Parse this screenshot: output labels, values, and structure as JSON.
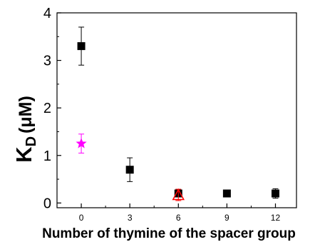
{
  "chart_data": {
    "type": "scatter",
    "xlabel": "Number of thymine of the spacer group",
    "ylabel_main": "K",
    "ylabel_sub": "D",
    "ylabel_unit": "(μM)",
    "xlim": [
      -1.5,
      13.3
    ],
    "ylim": [
      -0.1,
      4.0
    ],
    "x_ticks": [
      0,
      3,
      6,
      9,
      12
    ],
    "y_ticks": [
      0,
      1,
      2,
      3,
      4
    ],
    "grid": false,
    "legend": "none",
    "series": [
      {
        "marker": "square",
        "color": "#000000",
        "points": [
          {
            "x": 0,
            "y": 3.3,
            "err": 0.4
          },
          {
            "x": 3,
            "y": 0.7,
            "err": 0.25
          },
          {
            "x": 6,
            "y": 0.2,
            "err": 0.06
          },
          {
            "x": 9,
            "y": 0.2,
            "err": 0.07
          },
          {
            "x": 12,
            "y": 0.2,
            "err": 0.1
          }
        ]
      },
      {
        "marker": "star",
        "color": "#ff00ff",
        "points": [
          {
            "x": 0,
            "y": 1.25,
            "err": 0.2
          }
        ]
      },
      {
        "marker": "triangle-open",
        "color": "#ff0000",
        "points": [
          {
            "x": 6,
            "y": 0.17,
            "err": 0.12
          }
        ]
      }
    ]
  }
}
